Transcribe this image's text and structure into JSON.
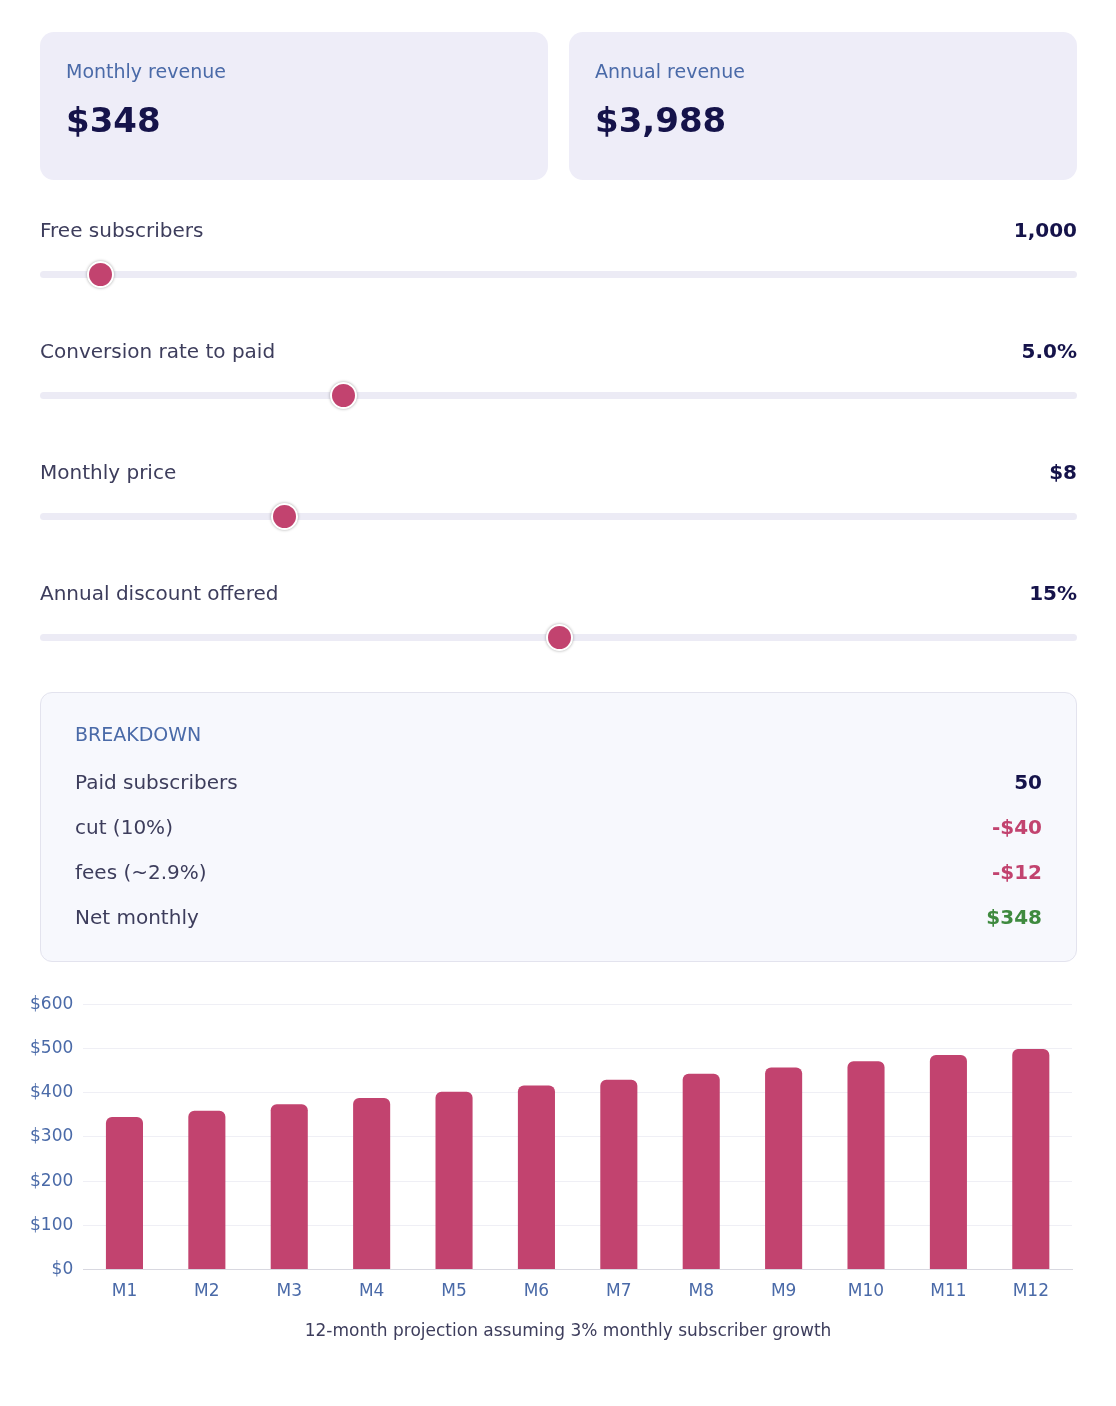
{
  "chart_data": [
    {
      "type": "other",
      "title": "Monthly revenue",
      "annotations": [
        "$348"
      ]
    },
    {
      "type": "other",
      "title": "Annual revenue",
      "annotations": [
        "$3,988"
      ]
    },
    {
      "type": "other",
      "categories": [
        "Free subscribers",
        "Conversion rate to paid",
        "Monthly price",
        "Annual discount offered"
      ],
      "value_labels": [
        "1,000",
        "5.0%",
        "$8",
        "15%"
      ]
    },
    {
      "type": "other",
      "title": "BREAKDOWN",
      "categories": [
        "Paid subscribers",
        "cut (10%)",
        "fees (~2.9%)",
        "Net monthly"
      ],
      "value_labels": [
        "50",
        "-$40",
        "-$12",
        "$348"
      ]
    },
    {
      "type": "bar",
      "categories": [
        "M1",
        "M2",
        "M3",
        "M4",
        "M5",
        "M6",
        "M7",
        "M8",
        "M9",
        "M10",
        "M11",
        "M12"
      ],
      "values": [
        345,
        359,
        374,
        388,
        402,
        416,
        429,
        443,
        457,
        471,
        485,
        499
      ],
      "color": "#c2436f",
      "ylim": [
        0,
        600
      ],
      "yticks": [
        {
          "value": 0,
          "label": "$0"
        },
        {
          "value": 100,
          "label": "$100"
        },
        {
          "value": 200,
          "label": "$200"
        },
        {
          "value": 300,
          "label": "$300"
        },
        {
          "value": 400,
          "label": "$400"
        },
        {
          "value": 500,
          "label": "$500"
        },
        {
          "value": 600,
          "label": "$600"
        }
      ],
      "grid": "y",
      "annotations": [
        "12-month projection assuming 3% monthly subscriber growth"
      ]
    }
  ]
}
